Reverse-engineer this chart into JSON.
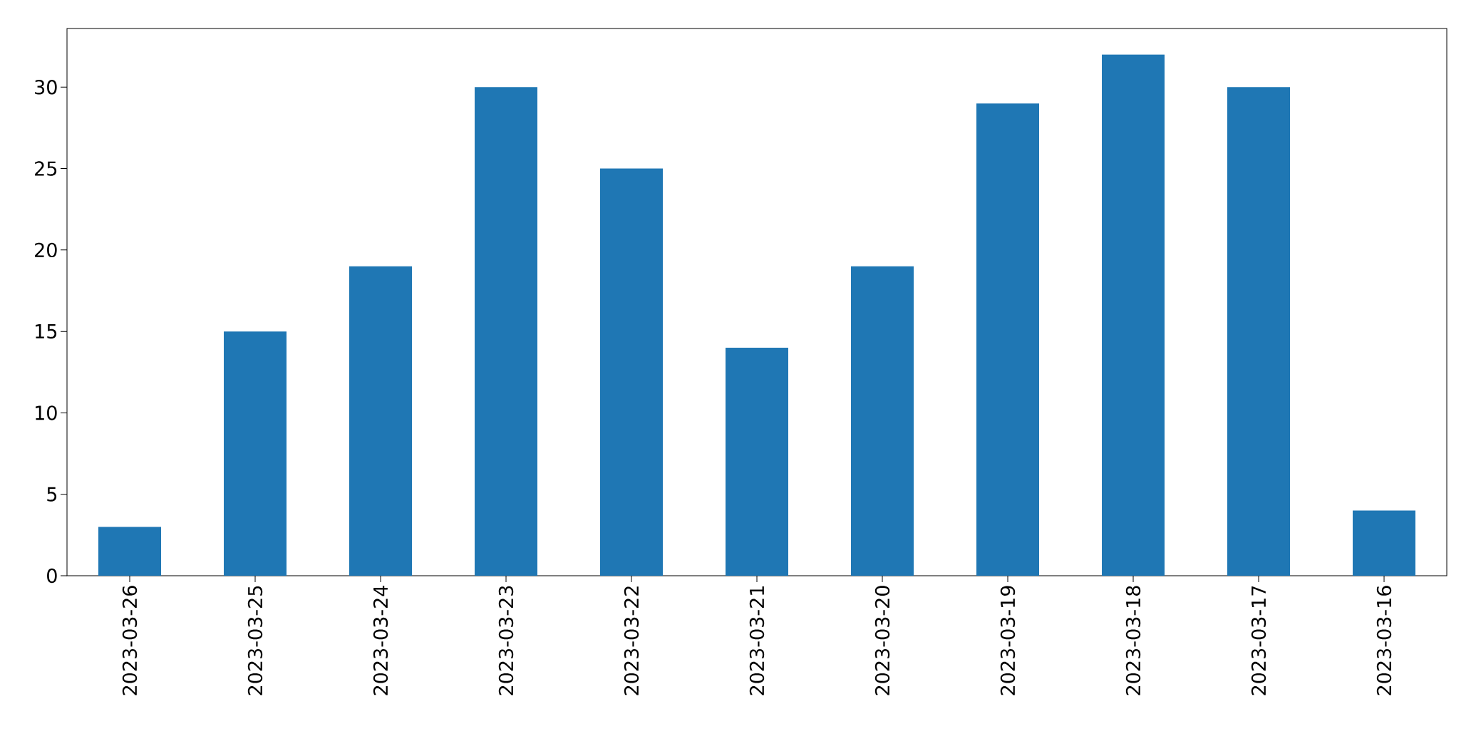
{
  "chart_data": {
    "type": "bar",
    "categories": [
      "2023-03-26",
      "2023-03-25",
      "2023-03-24",
      "2023-03-23",
      "2023-03-22",
      "2023-03-21",
      "2023-03-20",
      "2023-03-19",
      "2023-03-18",
      "2023-03-17",
      "2023-03-16"
    ],
    "values": [
      3,
      15,
      19,
      30,
      25,
      14,
      19,
      29,
      32,
      30,
      4
    ],
    "color": "#1f77b4",
    "ylim": [
      0,
      33.6
    ],
    "yticks": [
      0,
      5,
      10,
      15,
      20,
      25,
      30
    ]
  }
}
